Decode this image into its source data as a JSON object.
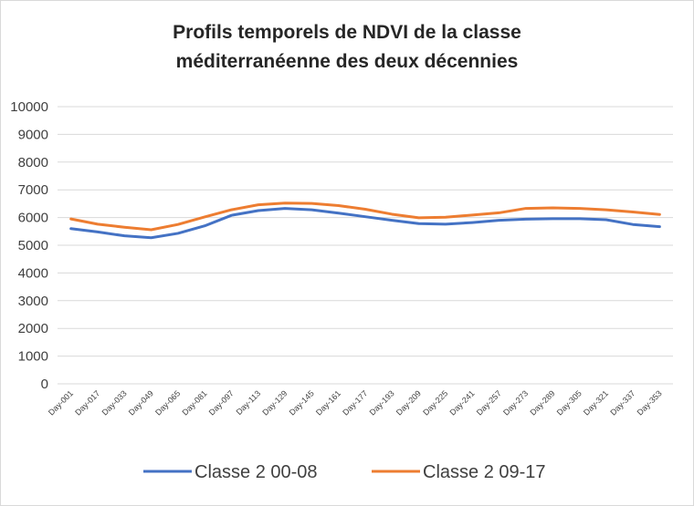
{
  "chart_data": {
    "type": "line",
    "title": "Profils temporels de NDVI de la classe méditerranéenne des deux décennies",
    "categories": [
      "Day-001",
      "Day-017",
      "Day-033",
      "Day-049",
      "Day-065",
      "Day-081",
      "Day-097",
      "Day-113",
      "Day-129",
      "Day-145",
      "Day-161",
      "Day-177",
      "Day-193",
      "Day-209",
      "Day-225",
      "Day-241",
      "Day-257",
      "Day-273",
      "Day-289",
      "Day-305",
      "Day-321",
      "Day-337",
      "Day-353"
    ],
    "series": [
      {
        "name": "Classe 2 00-08",
        "color": "#4472c4",
        "values": [
          5600,
          5480,
          5340,
          5270,
          5430,
          5700,
          6080,
          6250,
          6330,
          6280,
          6160,
          6030,
          5900,
          5780,
          5760,
          5820,
          5900,
          5940,
          5960,
          5960,
          5920,
          5750,
          5670
        ]
      },
      {
        "name": "Classe 2 09-17",
        "color": "#ed7d31",
        "values": [
          5950,
          5760,
          5650,
          5560,
          5750,
          6020,
          6280,
          6460,
          6520,
          6510,
          6430,
          6300,
          6120,
          5990,
          6010,
          6090,
          6170,
          6330,
          6350,
          6330,
          6280,
          6200,
          6110
        ]
      }
    ],
    "ylim": [
      0,
      10000
    ],
    "yticks": [
      0,
      1000,
      2000,
      3000,
      4000,
      5000,
      6000,
      7000,
      8000,
      9000,
      10000
    ],
    "grid": true,
    "legend": "bottom"
  }
}
